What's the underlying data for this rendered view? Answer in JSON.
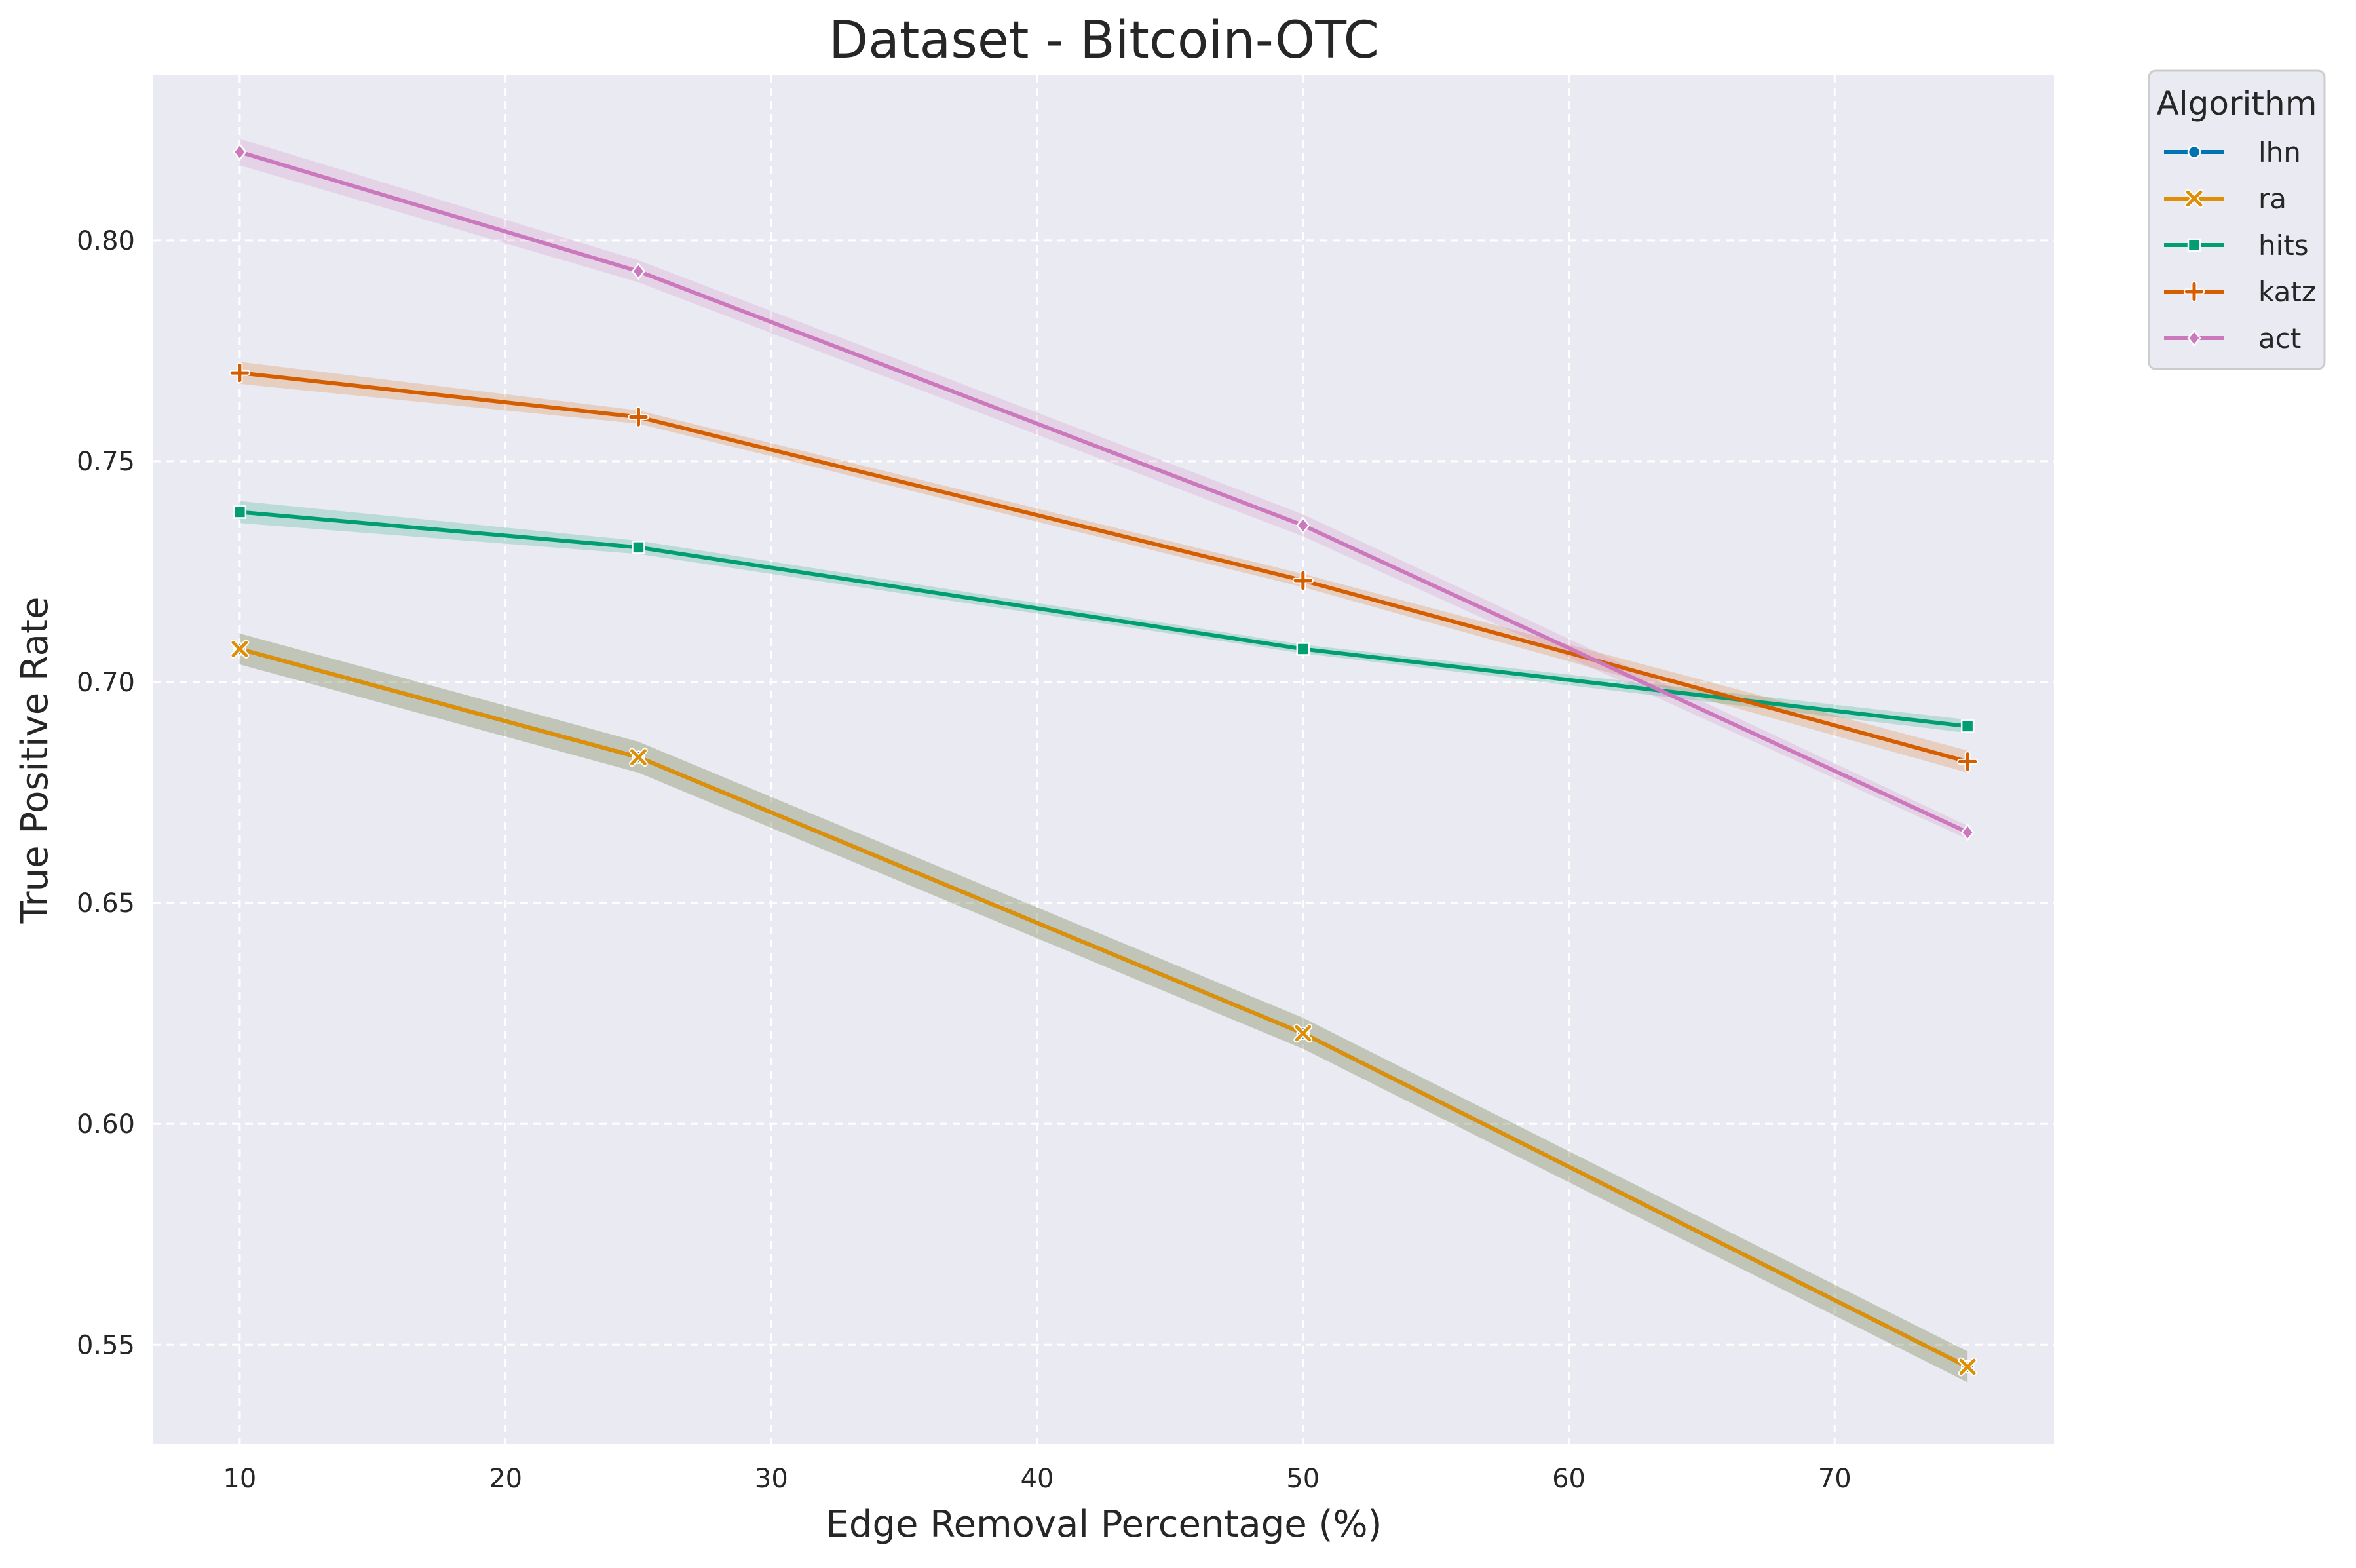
{
  "chart_data": {
    "type": "line",
    "title": "Dataset - Bitcoin-OTC",
    "xlabel": "Edge Removal Percentage (%)",
    "ylabel": "True Positive Rate",
    "x": [
      10,
      25,
      50,
      75
    ],
    "xlim": [
      6.75,
      78.25
    ],
    "ylim": [
      0.5275,
      0.8375
    ],
    "xticks": [
      10,
      20,
      30,
      40,
      50,
      60,
      70
    ],
    "yticks": [
      0.55,
      0.6,
      0.65,
      0.7,
      0.75,
      0.8
    ],
    "ytick_labels": [
      "0.55",
      "0.60",
      "0.65",
      "0.70",
      "0.75",
      "0.80"
    ],
    "grid": true,
    "background": "#eaeaf2",
    "legend": {
      "title": "Algorithm",
      "placement": "outside-top-right"
    },
    "series": [
      {
        "name": "lhn",
        "values": [
          0.7075,
          0.683,
          0.6205,
          0.545
        ],
        "band": [
          0.0035,
          0.0035,
          0.0035,
          0.0035
        ],
        "color": "#0173b2",
        "marker": "circle"
      },
      {
        "name": "ra",
        "values": [
          0.7075,
          0.683,
          0.6205,
          0.545
        ],
        "band": [
          0.0035,
          0.0035,
          0.0035,
          0.0035
        ],
        "color": "#de8f05",
        "marker": "x"
      },
      {
        "name": "hits",
        "values": [
          0.7385,
          0.7305,
          0.7075,
          0.69
        ],
        "band": [
          0.0025,
          0.0015,
          0.001,
          0.0015
        ],
        "color": "#029e73",
        "marker": "square"
      },
      {
        "name": "katz",
        "values": [
          0.77,
          0.76,
          0.723,
          0.682
        ],
        "band": [
          0.0025,
          0.0015,
          0.0015,
          0.0025
        ],
        "color": "#d55e00",
        "marker": "plus"
      },
      {
        "name": "act",
        "values": [
          0.82,
          0.793,
          0.7355,
          0.666
        ],
        "band": [
          0.003,
          0.0025,
          0.0025,
          0.0015
        ],
        "color": "#cc78bc",
        "marker": "diamond"
      }
    ]
  }
}
